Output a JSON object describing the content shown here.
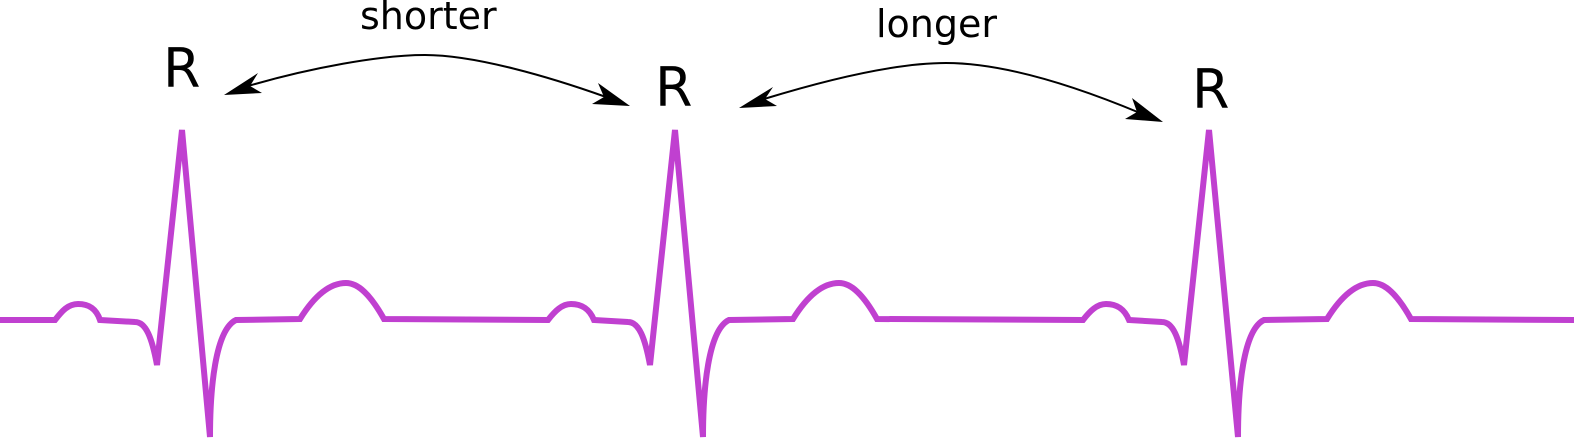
{
  "labels": {
    "r1": "R",
    "r2": "R",
    "r3": "R",
    "interval_1": "shorter",
    "interval_2": "longer"
  },
  "colors": {
    "trace": "#c040d0",
    "text": "#000000",
    "arrows": "#000000"
  }
}
